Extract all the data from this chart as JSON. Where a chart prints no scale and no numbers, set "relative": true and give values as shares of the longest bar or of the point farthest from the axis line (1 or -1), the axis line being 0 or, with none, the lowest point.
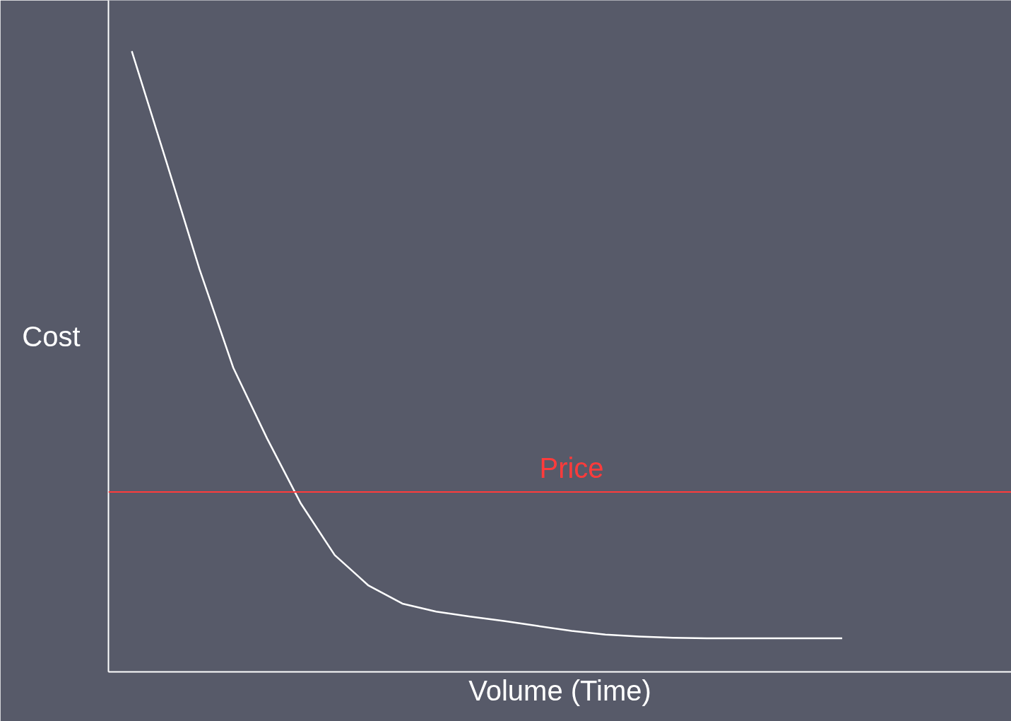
{
  "chart_data": {
    "type": "line",
    "relative": true,
    "xlabel": "Volume (Time)",
    "ylabel": "Cost",
    "categories": [
      null,
      null,
      null,
      null,
      null,
      null,
      null,
      null,
      null,
      null,
      null,
      null,
      null,
      null,
      null,
      null,
      null,
      null,
      null,
      null,
      null,
      null
    ],
    "series": [
      {
        "color": "#ffffff",
        "values": [
          1.0,
          0.826,
          0.649,
          0.49,
          0.376,
          0.271,
          0.188,
          0.139,
          0.11,
          0.097,
          0.089,
          0.082,
          0.074,
          0.066,
          0.06,
          0.057,
          0.055,
          0.054,
          0.054,
          0.054,
          0.054,
          0.054
        ]
      }
    ],
    "ref_lines": [
      {
        "axis": "y",
        "value": 0.29,
        "label": "Price",
        "color": "#ff3b3b"
      }
    ],
    "marker": "none",
    "line_style": "solid"
  }
}
